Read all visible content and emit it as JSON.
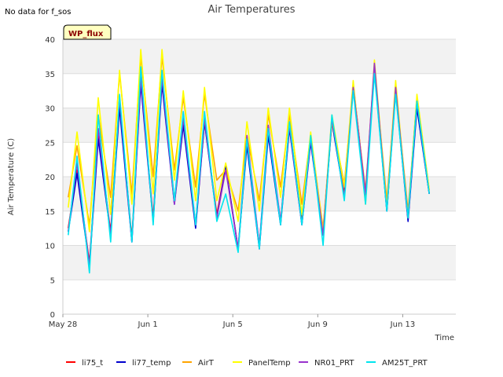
{
  "header": {
    "note": "No data for f_sos",
    "badge": "WP_flux"
  },
  "chart_data": {
    "type": "line",
    "title": "Air Temperatures",
    "xlabel": "Time",
    "ylabel": "Air Temperature (C)",
    "ylim": [
      0,
      40
    ],
    "yticks": [
      0,
      5,
      10,
      15,
      20,
      25,
      30,
      35,
      40
    ],
    "xlim": [
      "2023-05-28",
      "2023-06-15T12:00"
    ],
    "xticks": [
      {
        "date": "2023-05-28",
        "label": "May 28"
      },
      {
        "date": "2023-06-01",
        "label": "Jun 1"
      },
      {
        "date": "2023-06-05",
        "label": "Jun 5"
      },
      {
        "date": "2023-06-09",
        "label": "Jun 9"
      },
      {
        "date": "2023-06-13",
        "label": "Jun 13"
      }
    ],
    "grid": true,
    "legend_position": "bottom",
    "x": [
      "2023-05-28T06:00",
      "2023-05-28T16:00",
      "2023-05-29T06:00",
      "2023-05-29T16:00",
      "2023-05-30T06:00",
      "2023-05-30T16:00",
      "2023-05-31T06:00",
      "2023-05-31T16:00",
      "2023-06-01T06:00",
      "2023-06-01T16:00",
      "2023-06-02T06:00",
      "2023-06-02T16:00",
      "2023-06-03T06:00",
      "2023-06-03T16:00",
      "2023-06-04T06:00",
      "2023-06-04T16:00",
      "2023-06-05T06:00",
      "2023-06-05T16:00",
      "2023-06-06T06:00",
      "2023-06-06T16:00",
      "2023-06-07T06:00",
      "2023-06-07T16:00",
      "2023-06-08T06:00",
      "2023-06-08T16:00",
      "2023-06-09T06:00",
      "2023-06-09T16:00",
      "2023-06-10T06:00",
      "2023-06-10T16:00",
      "2023-06-11T06:00",
      "2023-06-11T16:00",
      "2023-06-12T06:00",
      "2023-06-12T16:00",
      "2023-06-13T06:00",
      "2023-06-13T16:00",
      "2023-06-14T06:00",
      "2023-06-14T16:00",
      "2023-06-15T06:00"
    ],
    "series": [
      {
        "name": "li75_t",
        "color": "#ff0000",
        "values": [
          12.5,
          21,
          7.5,
          26,
          12,
          31,
          11,
          34,
          14,
          34,
          16.5,
          28,
          13,
          28,
          14.5,
          21.5,
          9.5,
          25,
          10,
          26.5,
          13.5,
          27.5,
          13.5,
          25.5,
          12,
          28.5,
          17.5,
          33.5,
          17.5,
          36,
          15.5,
          33,
          14,
          30.5,
          17.5,
          null,
          null
        ]
      },
      {
        "name": "li77_temp",
        "color": "#0000cc",
        "values": [
          12,
          20.5,
          7,
          25.5,
          11.5,
          30,
          10.5,
          33.5,
          13.5,
          33.5,
          16,
          27.5,
          12.5,
          28,
          14,
          21.5,
          9.5,
          24.5,
          9.5,
          26,
          13,
          27,
          13,
          25,
          11.5,
          28,
          17,
          33,
          17,
          35.5,
          15,
          32.5,
          13.5,
          30,
          17.5,
          null,
          null
        ]
      },
      {
        "name": "AirT",
        "color": "#ffa500",
        "values": [
          17,
          24.5,
          13,
          29,
          17,
          35,
          17.5,
          37.5,
          20,
          37.5,
          21,
          31.5,
          18.5,
          32,
          19.5,
          21,
          15,
          26,
          16.5,
          29,
          18.5,
          29,
          16,
          26,
          12.5,
          28,
          19,
          33,
          18,
          36,
          16.5,
          33,
          15,
          31.5,
          18,
          null,
          null
        ]
      },
      {
        "name": "PanelTemp",
        "color": "#ffff00",
        "values": [
          15.5,
          26.5,
          12,
          31.5,
          14.5,
          35.5,
          16,
          38.5,
          17.5,
          38.5,
          19.5,
          32.5,
          16.5,
          33,
          16.5,
          22,
          13.5,
          28,
          15,
          30,
          17,
          30,
          14.5,
          26.5,
          12,
          29,
          18.5,
          34,
          16,
          37,
          15.5,
          34,
          14,
          32,
          18,
          null,
          null
        ]
      },
      {
        "name": "NR01_PRT",
        "color": "#9932cc",
        "values": [
          12,
          22,
          7,
          27,
          11.5,
          31.5,
          10.5,
          34.5,
          13.5,
          34.5,
          16,
          28.5,
          13,
          28.5,
          14,
          21,
          9.5,
          26,
          10,
          27.5,
          13.5,
          27.5,
          13,
          25.5,
          11.5,
          28.5,
          17,
          33,
          17.5,
          36.5,
          15,
          33,
          14,
          31,
          17.5,
          null,
          null
        ]
      },
      {
        "name": "AM25T_PRT",
        "color": "#00e5ee",
        "values": [
          11.5,
          23,
          6,
          29,
          10.5,
          32,
          10.5,
          36,
          13,
          35.5,
          16.5,
          29.5,
          13,
          29.5,
          13.5,
          17.5,
          9,
          25.5,
          9.5,
          27,
          13,
          28,
          13,
          26,
          10,
          29,
          16.5,
          32.5,
          16,
          35,
          15,
          32,
          14,
          31,
          17.5,
          null,
          null
        ]
      }
    ]
  }
}
